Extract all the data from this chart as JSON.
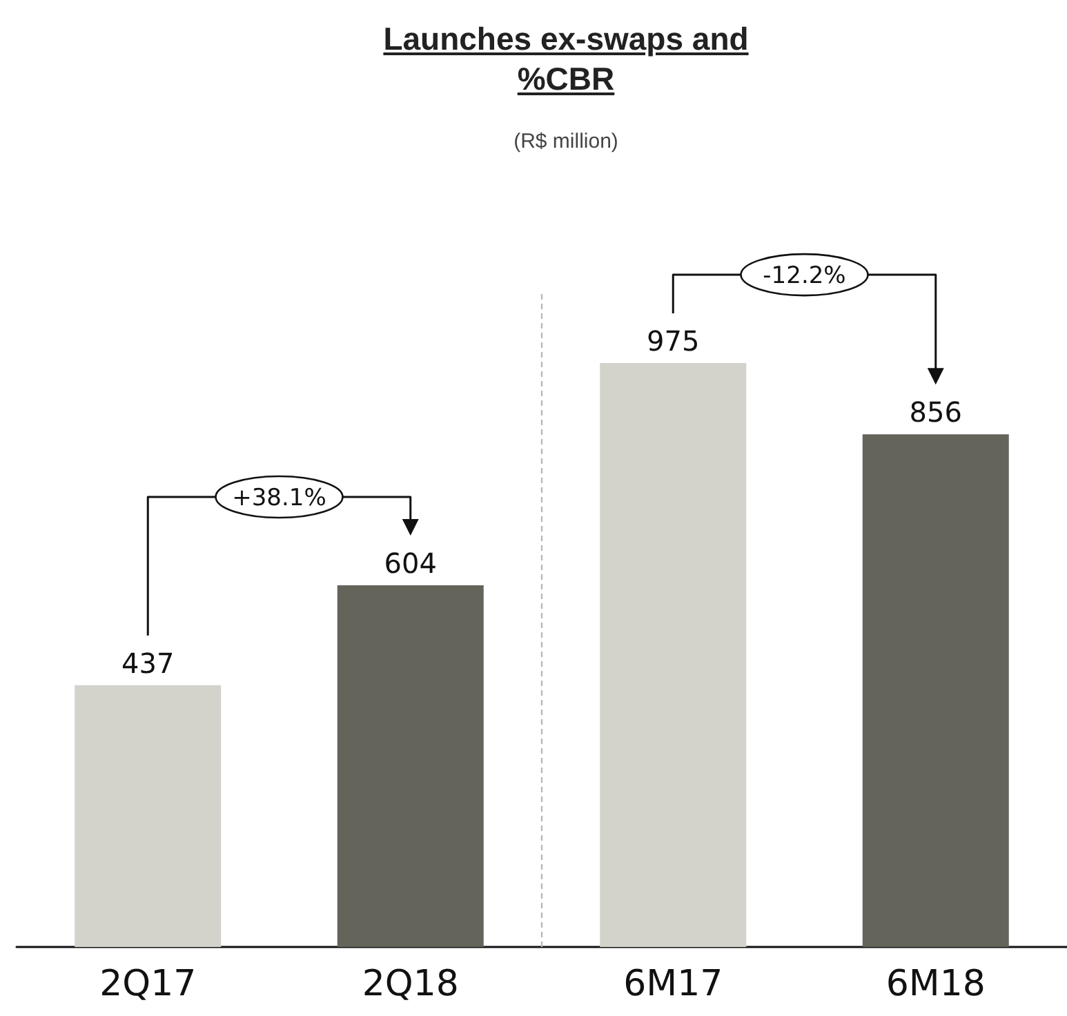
{
  "chart_data": {
    "type": "bar",
    "title": "Launches ex-swaps and %CBR",
    "subtitle": "(R$ million)",
    "categories": [
      "2Q17",
      "2Q18",
      "6M17",
      "6M18"
    ],
    "values": [
      437,
      604,
      975,
      856
    ],
    "colors": [
      "#d3d3cb",
      "#64645a",
      "#d3d3cb",
      "#64645a"
    ],
    "data_labels": true,
    "annotations": [
      "+38.1%",
      "-12.2%"
    ]
  }
}
